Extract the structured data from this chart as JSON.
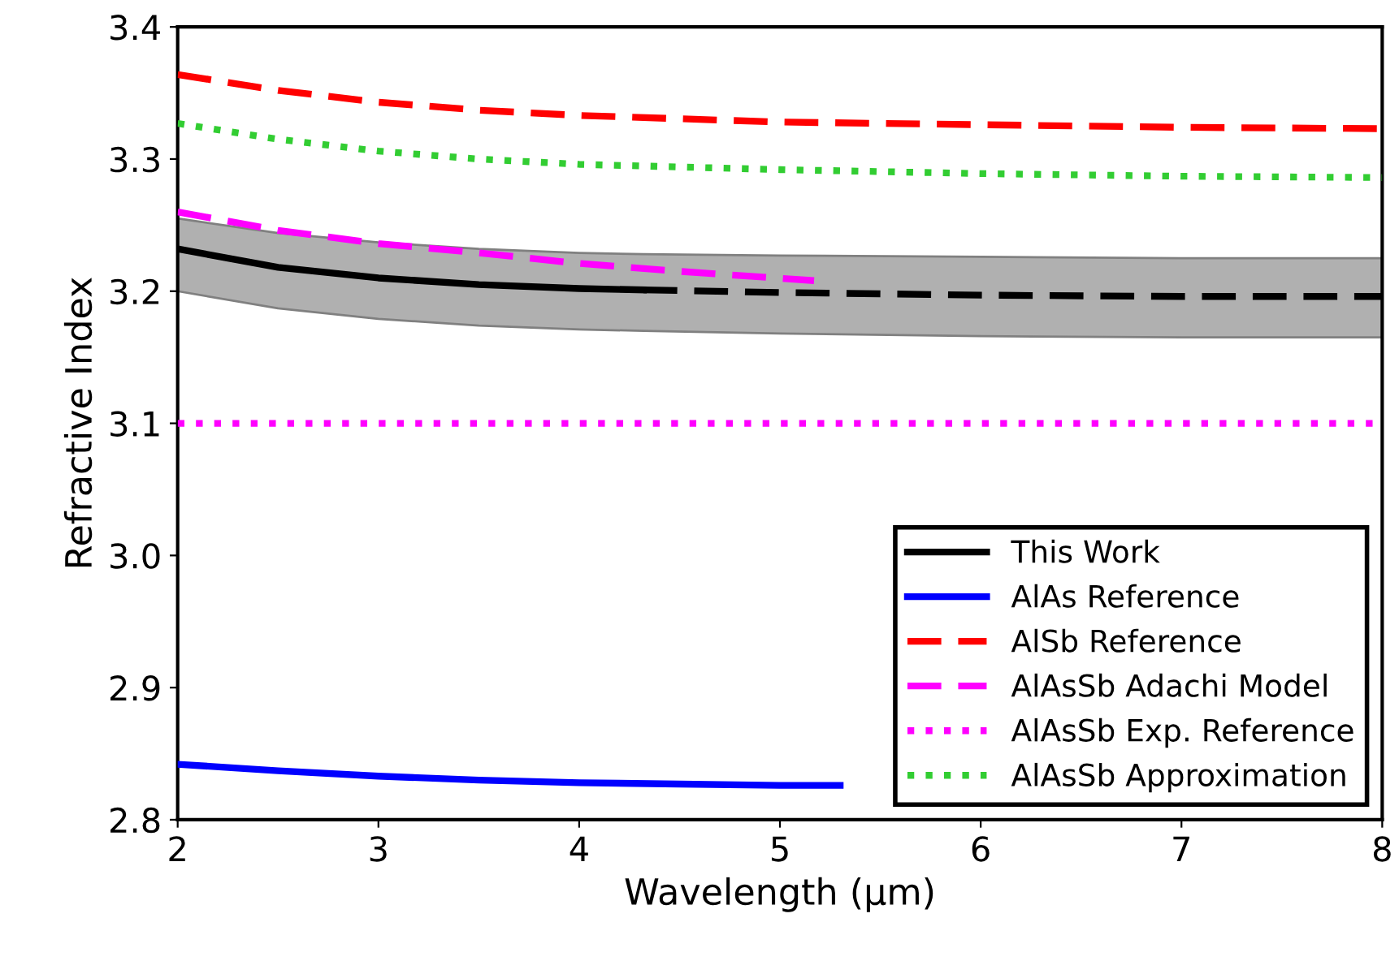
{
  "chart_data": {
    "type": "line",
    "xlabel": "Wavelength (µm)",
    "ylabel": "Refractive Index",
    "xlim": [
      2,
      8
    ],
    "ylim": [
      2.8,
      3.4
    ],
    "xticks": [
      2,
      3,
      4,
      5,
      6,
      7,
      8
    ],
    "yticks": [
      {
        "value": 2.8,
        "label": "2.8"
      },
      {
        "value": 2.9,
        "label": "2.9"
      },
      {
        "value": 3.0,
        "label": "3.0"
      },
      {
        "value": 3.1,
        "label": "3.1"
      },
      {
        "value": 3.2,
        "label": "3.2"
      },
      {
        "value": 3.3,
        "label": "3.3"
      },
      {
        "value": 3.4,
        "label": "3.4"
      }
    ],
    "grid": false,
    "legend": "bottom right",
    "series": [
      {
        "name": "This Work",
        "color": "#000000",
        "line_style": "solid",
        "x": [
          2,
          2.5,
          3,
          3.5,
          4,
          4.32
        ],
        "values": [
          3.232,
          3.218,
          3.21,
          3.205,
          3.202,
          3.201
        ]
      },
      {
        "color": "#000000",
        "line_style": "dashed",
        "x": [
          2,
          2.5,
          3,
          3.5,
          4,
          4.32,
          5,
          6,
          7,
          8
        ],
        "values": [
          null,
          null,
          null,
          null,
          null,
          3.201,
          3.199,
          3.197,
          3.196,
          3.196
        ],
        "lower": [
          3.2,
          3.187,
          3.179,
          3.174,
          3.171,
          3.17,
          3.168,
          3.166,
          3.165,
          3.165
        ],
        "upper": [
          3.255,
          3.244,
          3.237,
          3.232,
          3.229,
          3.228,
          3.227,
          3.226,
          3.225,
          3.225
        ]
      },
      {
        "name": "AlAs Reference",
        "color": "#0000ff",
        "line_style": "solid",
        "x": [
          2,
          2.5,
          3,
          3.5,
          4,
          4.5,
          5,
          5.3
        ],
        "values": [
          2.842,
          2.837,
          2.833,
          2.83,
          2.828,
          2.827,
          2.826,
          2.826
        ]
      },
      {
        "name": "AlSb Reference",
        "color": "#ff0000",
        "line_style": "dashed",
        "x": [
          2,
          2.5,
          3,
          3.5,
          4,
          5,
          6,
          7,
          8
        ],
        "values": [
          3.364,
          3.352,
          3.343,
          3.337,
          3.333,
          3.328,
          3.326,
          3.324,
          3.323
        ]
      },
      {
        "name": "AlAsSb Adachi Model",
        "color": "#ff00ff",
        "line_style": "dashed",
        "x": [
          2,
          2.5,
          3,
          3.5,
          4,
          4.5,
          5.17
        ],
        "values": [
          3.26,
          3.246,
          3.236,
          3.229,
          3.221,
          3.215,
          3.208
        ]
      },
      {
        "name": "AlAsSb Exp. Reference",
        "color": "#ff00ff",
        "line_style": "dotted",
        "x": [
          2,
          8
        ],
        "values": [
          3.1,
          3.1
        ]
      },
      {
        "name": "AlAsSb Approximation",
        "color": "#32cd32",
        "line_style": "dotted",
        "x": [
          2,
          2.5,
          3,
          3.5,
          4,
          5,
          6,
          7,
          8
        ],
        "values": [
          3.327,
          3.315,
          3.306,
          3.3,
          3.296,
          3.292,
          3.289,
          3.287,
          3.286
        ]
      }
    ]
  }
}
